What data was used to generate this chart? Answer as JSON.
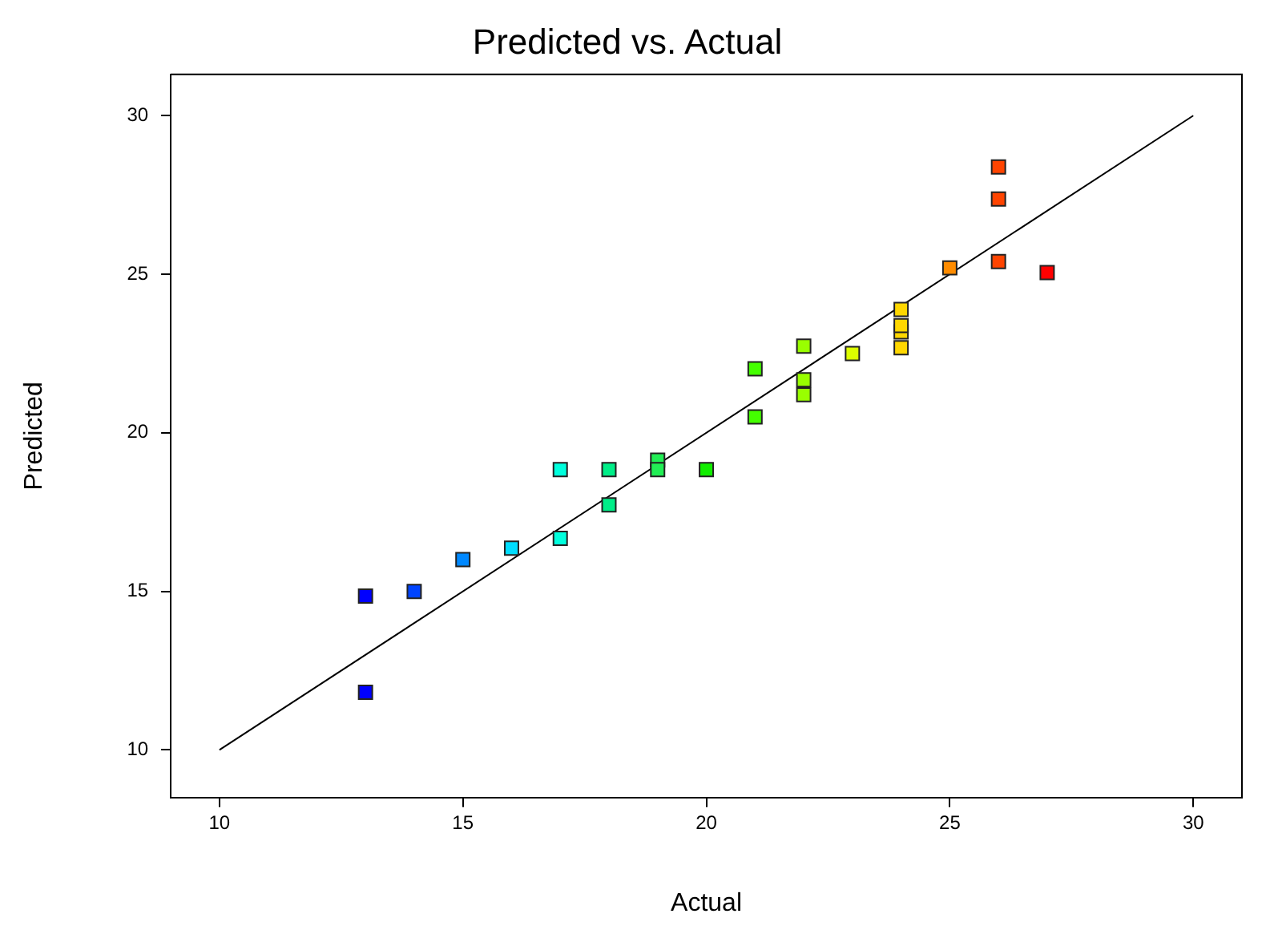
{
  "chart_data": {
    "type": "scatter",
    "title": "Predicted vs. Actual",
    "xlabel": "Actual",
    "ylabel": "Predicted",
    "xlim": [
      9,
      31
    ],
    "ylim": [
      8.5,
      31.3
    ],
    "xticks": [
      10,
      15,
      20,
      25,
      30
    ],
    "yticks": [
      10,
      15,
      20,
      25,
      30
    ],
    "grid": false,
    "legend": false,
    "series": [
      {
        "type": "scatter",
        "marker": "square",
        "x": [
          13,
          13,
          14,
          15,
          16,
          17,
          17,
          18,
          18,
          19,
          19,
          20,
          21,
          21,
          22,
          22,
          22,
          23,
          24,
          24,
          24,
          24,
          25,
          26,
          26,
          26,
          27
        ],
        "values": [
          14.85,
          11.82,
          15.0,
          16.0,
          16.36,
          18.84,
          16.67,
          18.84,
          17.73,
          19.14,
          18.84,
          18.84,
          22.02,
          20.5,
          22.73,
          21.67,
          21.2,
          22.5,
          23.89,
          23.18,
          22.68,
          23.38,
          25.2,
          28.38,
          27.37,
          25.4,
          25.05
        ],
        "colors": [
          "#0000ff",
          "#0000ff",
          "#0044ff",
          "#0088ff",
          "#00ddff",
          "#00ffdd",
          "#00ffdd",
          "#00ee88",
          "#00ee88",
          "#22ee55",
          "#22ee55",
          "#11ee00",
          "#44ff00",
          "#44ff00",
          "#99ff00",
          "#99ff00",
          "#99ff00",
          "#ddff00",
          "#ffd700",
          "#ffd700",
          "#ffd700",
          "#ffd700",
          "#ff8c00",
          "#ff4400",
          "#ff4400",
          "#ff4400",
          "#ff0000"
        ]
      },
      {
        "type": "line",
        "x": [
          10,
          30
        ],
        "values": [
          10,
          30
        ],
        "color": "#000000",
        "line_style": "solid"
      }
    ]
  }
}
